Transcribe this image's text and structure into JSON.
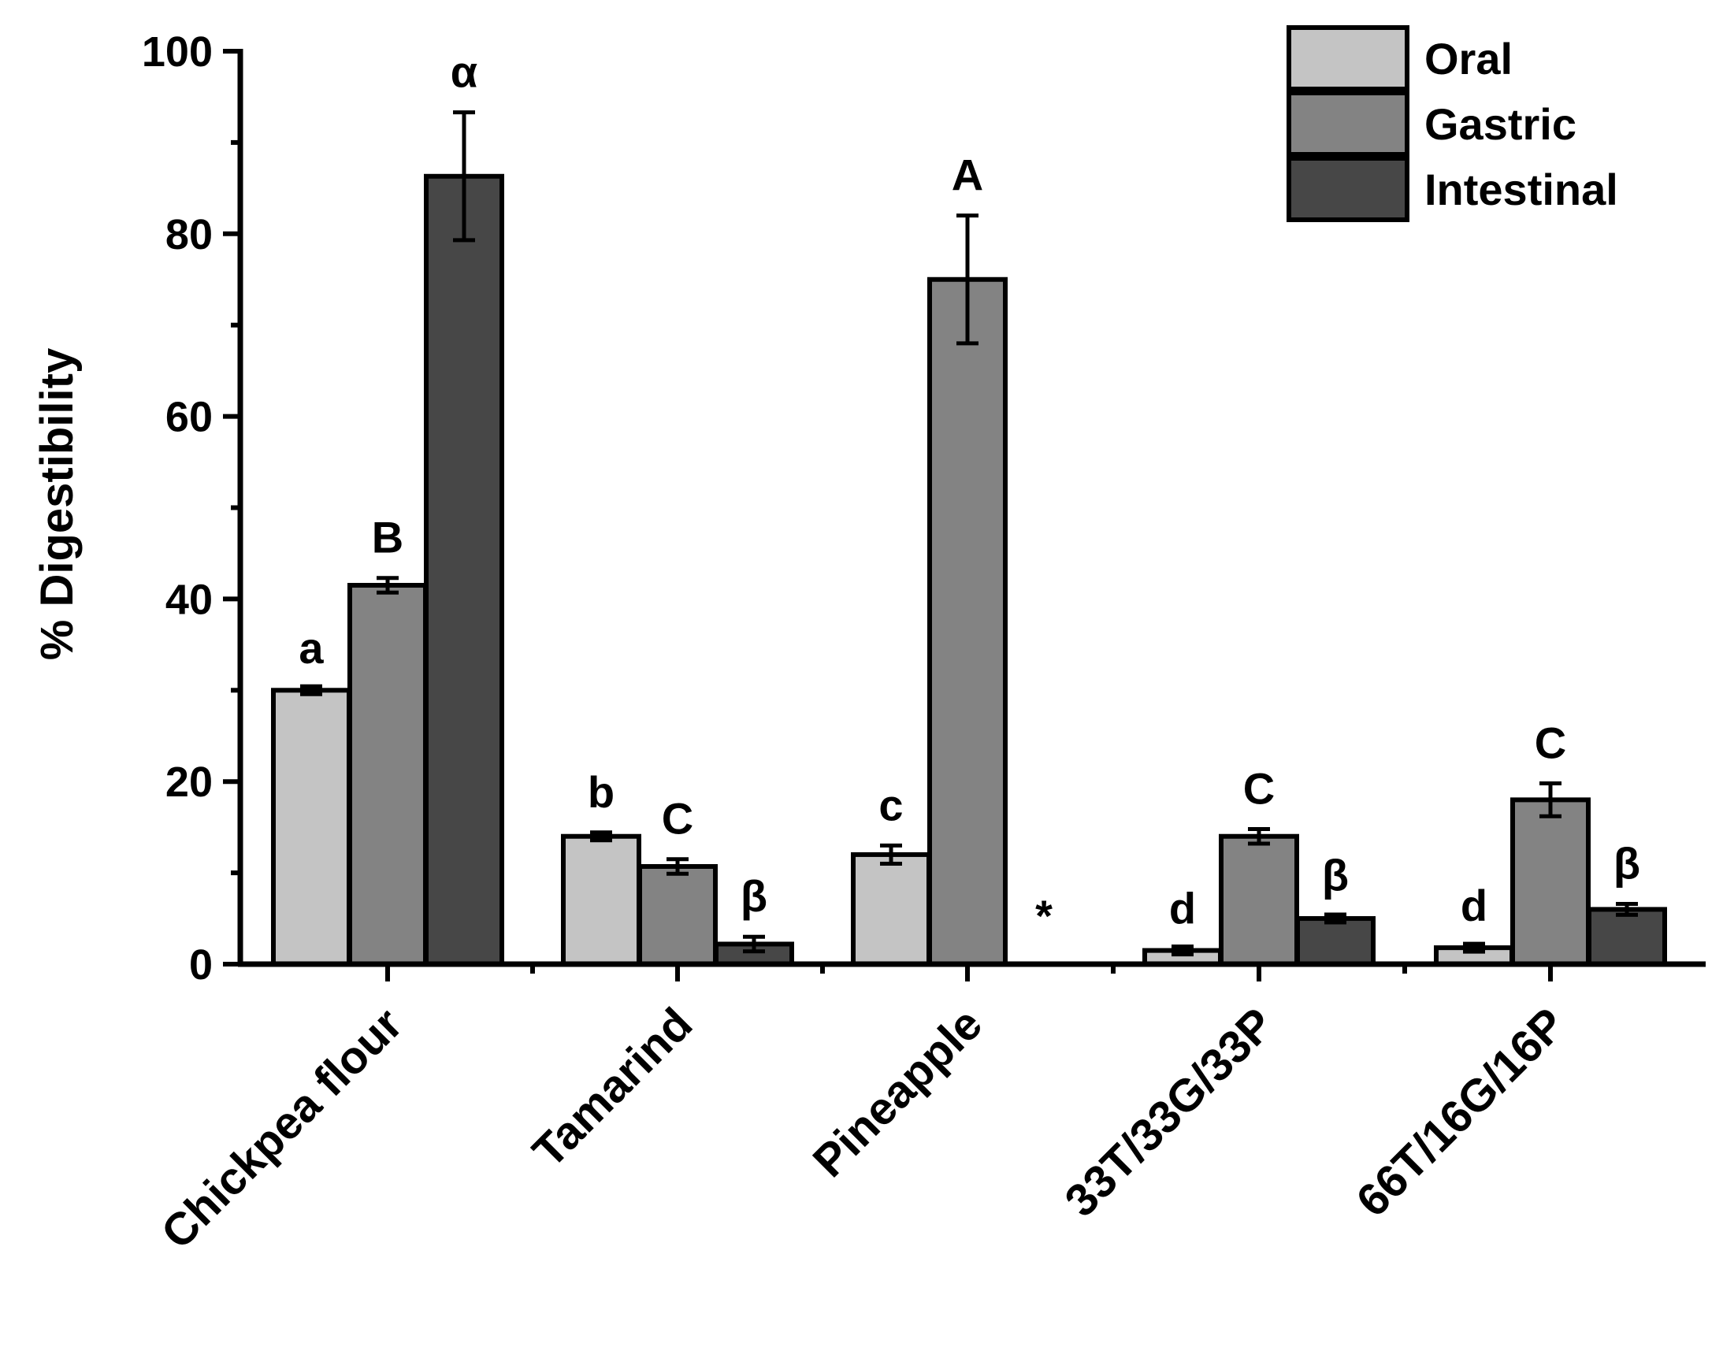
{
  "chart_data": {
    "type": "bar",
    "title": "",
    "xlabel": "",
    "ylabel": "% Digestibility",
    "ylim": [
      0,
      100
    ],
    "yticks": [
      0,
      20,
      40,
      60,
      80,
      100
    ],
    "categories": [
      "Chickpea flour",
      "Tamarind",
      "Pineapple",
      "33T/33G/33P",
      "66T/16G/16P"
    ],
    "legend_position": "top-right",
    "series": [
      {
        "name": "Oral",
        "color": "#c4c4c4",
        "values": [
          30,
          14,
          12,
          1.5,
          1.8
        ],
        "errors": [
          0.2,
          0.4,
          1.0,
          0.2,
          0.2
        ],
        "letters": [
          "a",
          "b",
          "c",
          "d",
          "d"
        ]
      },
      {
        "name": "Gastric",
        "color": "#838383",
        "values": [
          41.5,
          10.7,
          75,
          14,
          18
        ],
        "errors": [
          0.8,
          0.8,
          7,
          0.8,
          1.8
        ],
        "letters": [
          "B",
          "C",
          "A",
          "C",
          "C"
        ]
      },
      {
        "name": "Intestinal",
        "color": "#474747",
        "values": [
          86.3,
          2.2,
          0,
          5,
          6
        ],
        "errors": [
          7,
          0.8,
          0,
          0.3,
          0.6
        ],
        "letters": [
          "α",
          "β",
          "*",
          "β",
          "β"
        ]
      }
    ]
  }
}
